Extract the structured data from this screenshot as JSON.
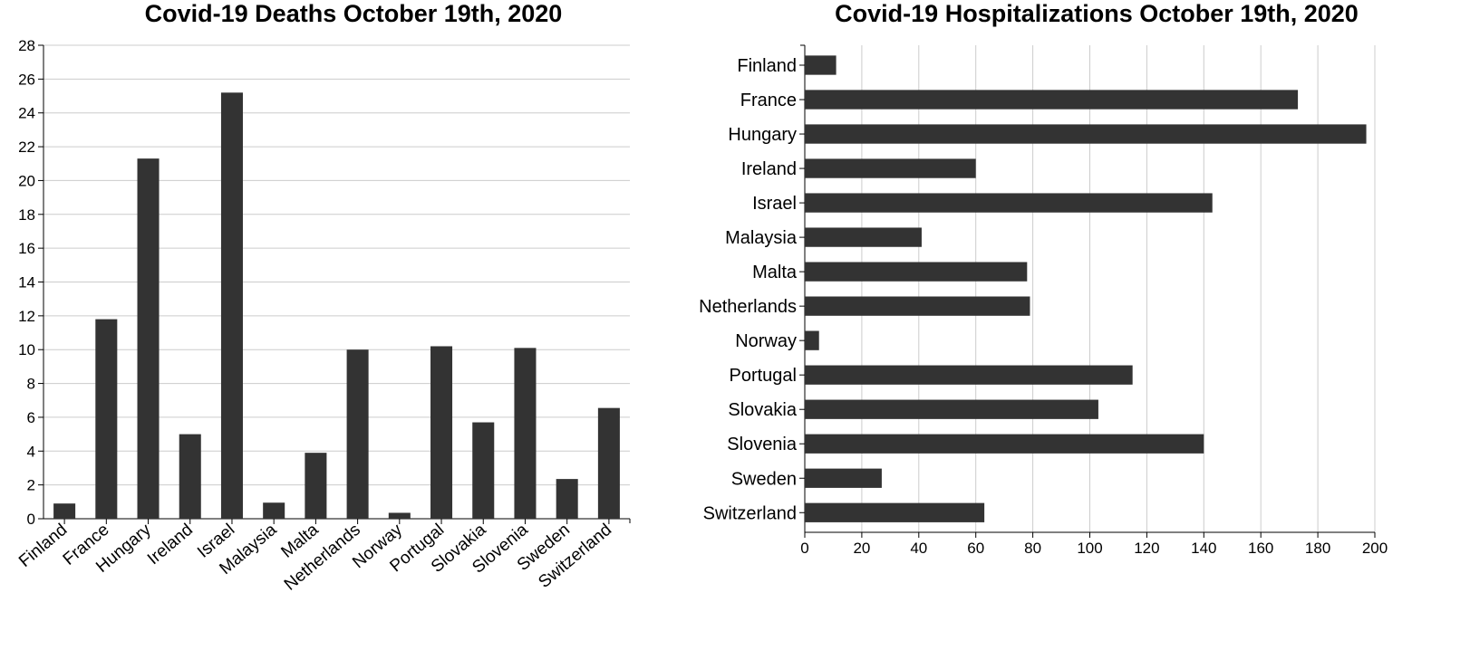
{
  "chart_data": [
    {
      "type": "bar",
      "title": "Covid-19 Deaths October 19th, 2020",
      "categories": [
        "Finland",
        "France",
        "Hungary",
        "Ireland",
        "Israel",
        "Malaysia",
        "Malta",
        "Netherlands",
        "Norway",
        "Portugal",
        "Slovakia",
        "Slovenia",
        "Sweden",
        "Switzerland"
      ],
      "values": [
        0.9,
        11.8,
        21.3,
        5.0,
        25.2,
        0.95,
        3.9,
        10.0,
        0.35,
        10.2,
        5.7,
        10.1,
        2.35,
        6.55
      ],
      "yticks": [
        0,
        2,
        4,
        6,
        8,
        10,
        12,
        14,
        16,
        18,
        20,
        22,
        24,
        26,
        28
      ],
      "ylim": [
        0,
        28
      ],
      "xlabel": "",
      "ylabel": "",
      "grid": true,
      "bar_color": "#333333"
    },
    {
      "type": "bar",
      "orientation": "horizontal",
      "title": "Covid-19 Hospitalizations October 19th, 2020",
      "categories": [
        "Finland",
        "France",
        "Hungary",
        "Ireland",
        "Israel",
        "Malaysia",
        "Malta",
        "Netherlands",
        "Norway",
        "Portugal",
        "Slovakia",
        "Slovenia",
        "Sweden",
        "Switzerland"
      ],
      "values": [
        11,
        173,
        197,
        60,
        143,
        41,
        78,
        79,
        5,
        115,
        103,
        140,
        27,
        63
      ],
      "xticks": [
        0,
        20,
        40,
        60,
        80,
        100,
        120,
        140,
        160,
        180,
        200
      ],
      "xlim": [
        0,
        200
      ],
      "xlabel": "",
      "ylabel": "",
      "grid": true,
      "bar_color": "#333333"
    }
  ]
}
